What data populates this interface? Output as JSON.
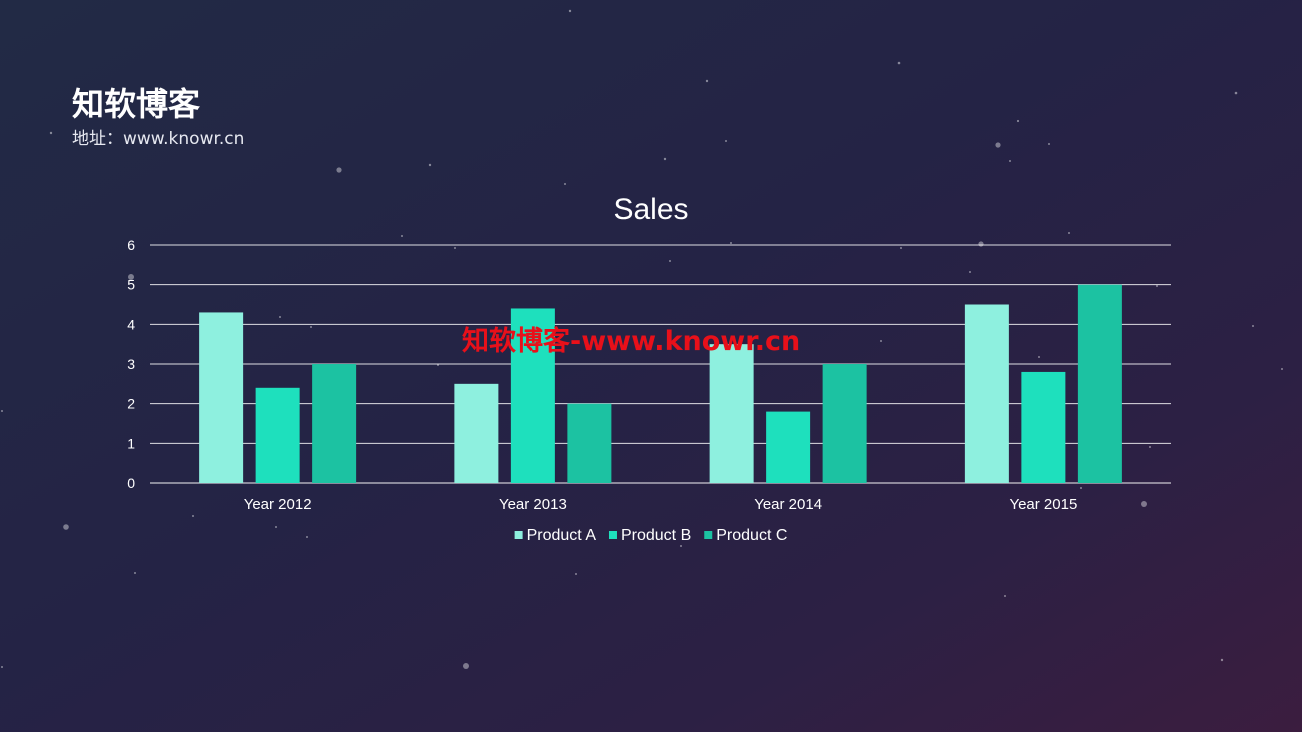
{
  "brand": {
    "title": "知软博客",
    "subtitle": "地址：www.knowr.cn"
  },
  "watermark": "知软博客-www.knowr.cn",
  "colors": {
    "product_a": "#8ef0df",
    "product_b": "#1ee0bd",
    "product_c": "#1cc2a2",
    "gridline": "#ffffff",
    "watermark": "#e8101a"
  },
  "chart_data": {
    "type": "bar",
    "title": "Sales",
    "categories": [
      "Year 2012",
      "Year 2013",
      "Year 2014",
      "Year 2015"
    ],
    "series": [
      {
        "name": "Product A",
        "values": [
          4.3,
          2.5,
          3.5,
          4.5
        ]
      },
      {
        "name": "Product B",
        "values": [
          2.4,
          4.4,
          1.8,
          2.8
        ]
      },
      {
        "name": "Product C",
        "values": [
          3,
          2,
          3,
          5
        ]
      }
    ],
    "ylim": [
      0,
      6
    ],
    "yticks": [
      0,
      1,
      2,
      3,
      4,
      5,
      6
    ],
    "grid": true,
    "legend": "bottom"
  }
}
